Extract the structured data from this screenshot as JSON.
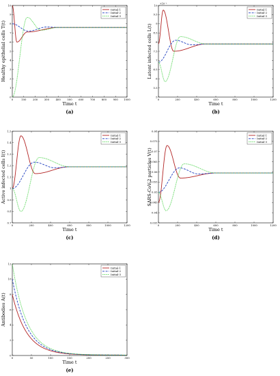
{
  "figure": {
    "legend": [
      "Initial-1",
      "Initial-2",
      "Initial-3"
    ],
    "colors": {
      "initial1": "#b22222",
      "initial2": "#1f3fbf",
      "initial3": "#32cd32"
    },
    "dash": {
      "initial1": "solid",
      "initial2": "dashed",
      "initial3": "dotted"
    }
  },
  "chart_data": [
    {
      "type": "line",
      "panel_label": "(a)",
      "xlabel": "Time t",
      "ylabel": "Healthy epithelial cells T(t)",
      "xlim": [
        0,
        1000
      ],
      "ylim": [
        0,
        10
      ],
      "xticks": [
        0,
        100,
        200,
        300,
        400,
        500,
        600,
        700,
        800,
        900,
        1000
      ],
      "yticks": [
        0,
        1,
        2,
        3,
        4,
        5,
        6,
        7,
        8,
        9,
        10
      ],
      "xtick_labels": [
        "0",
        "100",
        "200",
        "300",
        "400",
        "500",
        "600",
        "700",
        "800",
        "900",
        "1000"
      ],
      "ytick_labels": [
        "0",
        "1",
        "2",
        "3",
        "4",
        "5",
        "6",
        "7",
        "8",
        "9",
        "10"
      ],
      "y_exponent_label": "",
      "legend_position": "top-right",
      "series": [
        {
          "name": "Initial-1",
          "start": 10,
          "peak": 6.0,
          "peak_t": 40,
          "trough": 7.1,
          "trough_t": 130,
          "eq": 7.6,
          "settle": 400
        },
        {
          "name": "Initial-2",
          "start": 8,
          "peak": 7.2,
          "peak_t": 140,
          "trough": 7.65,
          "trough_t": 300,
          "eq": 7.6,
          "settle": 400
        },
        {
          "name": "Initial-3",
          "start": 0,
          "peak": 8.7,
          "peak_t": 130,
          "trough": 7.3,
          "trough_t": 250,
          "eq": 7.6,
          "settle": 400
        }
      ]
    },
    {
      "type": "line",
      "panel_label": "(b)",
      "xlabel": "Time t",
      "ylabel": "Latent infected cells L(t)",
      "xlim": [
        0,
        1200
      ],
      "ylim": [
        0.5,
        1.0
      ],
      "xticks": [
        0,
        200,
        400,
        600,
        800,
        1000,
        1200
      ],
      "yticks": [
        0.5,
        0.55,
        0.6,
        0.65,
        0.7,
        0.75,
        0.8,
        0.85,
        0.9,
        0.95,
        1.0
      ],
      "xtick_labels": [
        "0",
        "200",
        "400",
        "600",
        "800",
        "1000",
        "1200"
      ],
      "ytick_labels": [
        "5",
        "5.5",
        "6",
        "6.5",
        "7",
        "7.5",
        "8",
        "8.5",
        "9",
        "9.5",
        "10"
      ],
      "y_exponent_label": "×10⁻³",
      "legend_position": "top-right",
      "series": [
        {
          "name": "Initial-1",
          "start": 0.79,
          "peak": 0.975,
          "peak_t": 50,
          "trough": 0.75,
          "trough_t": 160,
          "eq": 0.79,
          "settle": 500
        },
        {
          "name": "Initial-2",
          "start": 0.69,
          "peak": 0.81,
          "peak_t": 180,
          "trough": 0.785,
          "trough_t": 350,
          "eq": 0.79,
          "settle": 500
        },
        {
          "name": "Initial-3",
          "start": 0.69,
          "peak": 0.585,
          "peak_t": 70,
          "trough": 0.83,
          "trough_t": 230,
          "eq": 0.79,
          "settle": 500
        }
      ]
    },
    {
      "type": "line",
      "panel_label": "(c)",
      "xlabel": "Time t",
      "ylabel": "Active infected cells I(t)",
      "xlim": [
        0,
        1200
      ],
      "ylim": [
        0.7,
        1.5
      ],
      "xticks": [
        0,
        200,
        400,
        600,
        800,
        1000,
        1200
      ],
      "yticks": [
        0.7,
        0.8,
        0.9,
        1.0,
        1.1,
        1.2,
        1.3,
        1.4,
        1.5
      ],
      "xtick_labels": [
        "0",
        "200",
        "400",
        "600",
        "800",
        "1000",
        "1200"
      ],
      "ytick_labels": [
        "0.7",
        "0.8",
        "0.9",
        "1",
        "1.1",
        "1.2",
        "1.3",
        "1.4",
        "1.5"
      ],
      "y_exponent_label": "",
      "legend_position": "top-right",
      "series": [
        {
          "name": "Initial-1",
          "start": 1.0,
          "peak": 1.46,
          "peak_t": 90,
          "trough": 1.13,
          "trough_t": 240,
          "eq": 1.19,
          "settle": 600
        },
        {
          "name": "Initial-2",
          "start": 1.0,
          "peak": 1.23,
          "peak_t": 230,
          "trough": 1.18,
          "trough_t": 450,
          "eq": 1.19,
          "settle": 600
        },
        {
          "name": "Initial-3",
          "start": 1.0,
          "peak": 0.8,
          "peak_t": 90,
          "trough": 1.27,
          "trough_t": 280,
          "eq": 1.19,
          "settle": 600
        }
      ]
    },
    {
      "type": "line",
      "panel_label": "(d)",
      "xlabel": "Time t",
      "ylabel": "SARS-CoV-2 particles V(t)",
      "xlim": [
        0,
        1200
      ],
      "ylim": [
        0.035,
        0.08
      ],
      "xticks": [
        0,
        200,
        400,
        600,
        800,
        1000,
        1200
      ],
      "yticks": [
        0.035,
        0.04,
        0.045,
        0.05,
        0.055,
        0.06,
        0.065,
        0.07,
        0.075,
        0.08
      ],
      "xtick_labels": [
        "0",
        "200",
        "400",
        "600",
        "800",
        "1000",
        "1200"
      ],
      "ytick_labels": [
        "0.035",
        "0.04",
        "0.045",
        "0.05",
        "0.055",
        "0.06",
        "0.065",
        "0.07",
        "0.075",
        "0.08"
      ],
      "y_exponent_label": "",
      "legend_position": "top-right",
      "series": [
        {
          "name": "Initial-1",
          "start": 0.045,
          "peak": 0.073,
          "peak_t": 90,
          "trough": 0.057,
          "trough_t": 230,
          "eq": 0.0595,
          "settle": 600
        },
        {
          "name": "Initial-2",
          "start": 0.05,
          "peak": 0.062,
          "peak_t": 220,
          "trough": 0.059,
          "trough_t": 420,
          "eq": 0.0595,
          "settle": 600
        },
        {
          "name": "Initial-3",
          "start": 0.05,
          "peak": 0.041,
          "peak_t": 80,
          "trough": 0.064,
          "trough_t": 270,
          "eq": 0.0595,
          "settle": 600
        }
      ]
    },
    {
      "type": "line",
      "panel_label": "(e)",
      "xlabel": "Time t",
      "ylabel": "Antibodies A(t)",
      "xlim": [
        0,
        300
      ],
      "ylim": [
        0,
        12
      ],
      "xticks": [
        0,
        50,
        100,
        150,
        200,
        250,
        300
      ],
      "yticks": [
        0,
        2,
        4,
        6,
        8,
        10,
        12
      ],
      "xtick_labels": [
        "0",
        "50",
        "100",
        "150",
        "200",
        "250",
        "300"
      ],
      "ytick_labels": [
        "0",
        "2",
        "4",
        "6",
        "8",
        "10",
        "12"
      ],
      "y_exponent_label": "",
      "legend_position": "top-right",
      "series": [
        {
          "name": "Initial-1",
          "start": 8,
          "tau": 38,
          "eq": 0.05
        },
        {
          "name": "Initial-2",
          "start": 10,
          "tau": 38,
          "eq": 0.05
        },
        {
          "name": "Initial-3",
          "start": 12,
          "tau": 38,
          "eq": 0.05
        }
      ]
    }
  ]
}
